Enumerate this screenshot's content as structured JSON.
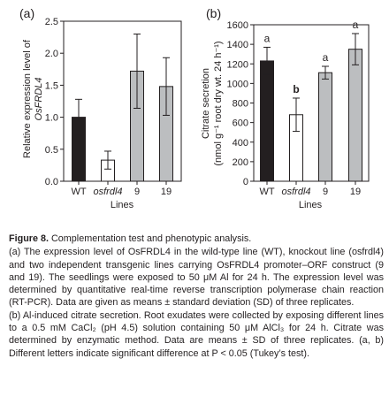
{
  "chart_data": [
    {
      "type": "bar",
      "panel_label": "(a)",
      "categories": [
        "WT",
        "osfrdl4",
        "9",
        "19"
      ],
      "values": [
        1.0,
        0.33,
        1.72,
        1.48
      ],
      "errors": [
        0.28,
        0.14,
        0.58,
        0.45
      ],
      "significance": [],
      "colors": [
        "#231f20",
        "#ffffff",
        "#bcbec0",
        "#bcbec0"
      ],
      "xlabel": "Lines",
      "ylabel_lines": [
        "Relative expression level of",
        "OsFRDL4"
      ],
      "ylim": [
        0,
        2.5
      ],
      "yticks": [
        "0.0",
        "0.5",
        "1.0",
        "1.5",
        "2.0",
        "2.5"
      ],
      "grid": false,
      "legend": "none"
    },
    {
      "type": "bar",
      "panel_label": "(b)",
      "categories": [
        "WT",
        "osfrdl4",
        "9",
        "19"
      ],
      "values": [
        1230,
        680,
        1110,
        1350
      ],
      "errors": [
        140,
        170,
        65,
        160
      ],
      "significance": [
        "a",
        "b",
        "a",
        "a"
      ],
      "colors": [
        "#231f20",
        "#ffffff",
        "#bcbec0",
        "#bcbec0"
      ],
      "xlabel": "Lines",
      "ylabel_lines": [
        "Citrate secretion",
        "(nmol g⁻¹ root dry wt. 24 h⁻¹)"
      ],
      "ylim": [
        0,
        1600
      ],
      "yticks": [
        "0",
        "200",
        "400",
        "600",
        "800",
        "1000",
        "1200",
        "1400",
        "1600"
      ],
      "grid": false,
      "legend": "none"
    }
  ],
  "caption": {
    "title_bold": "Figure 8.",
    "title_rest": " Complementation test and phenotypic analysis.",
    "para_a": "(a) The expression level of OsFRDL4 in the wild-type line (WT), knockout line (osfrdl4) and two independent transgenic lines carrying OsFRDL4 promoter–ORF construct (9 and 19). The seedlings were exposed to 50 μM Al for 24 h. The expression level was determined by quantitative real-time reverse transcription polymerase chain reaction (RT-PCR). Data are given as means ± standard deviation (SD) of three replicates.",
    "para_b": "(b) Al-induced citrate secretion. Root exudates were collected by exposing different lines to a 0.5 mM CaCl₂ (pH 4.5) solution containing 50 μM AlCl₃ for 24 h. Citrate was determined by enzymatic method. Data are means ± SD of three replicates. (a, b) Different letters indicate significant difference at P < 0.05 (Tukey’s test)."
  }
}
